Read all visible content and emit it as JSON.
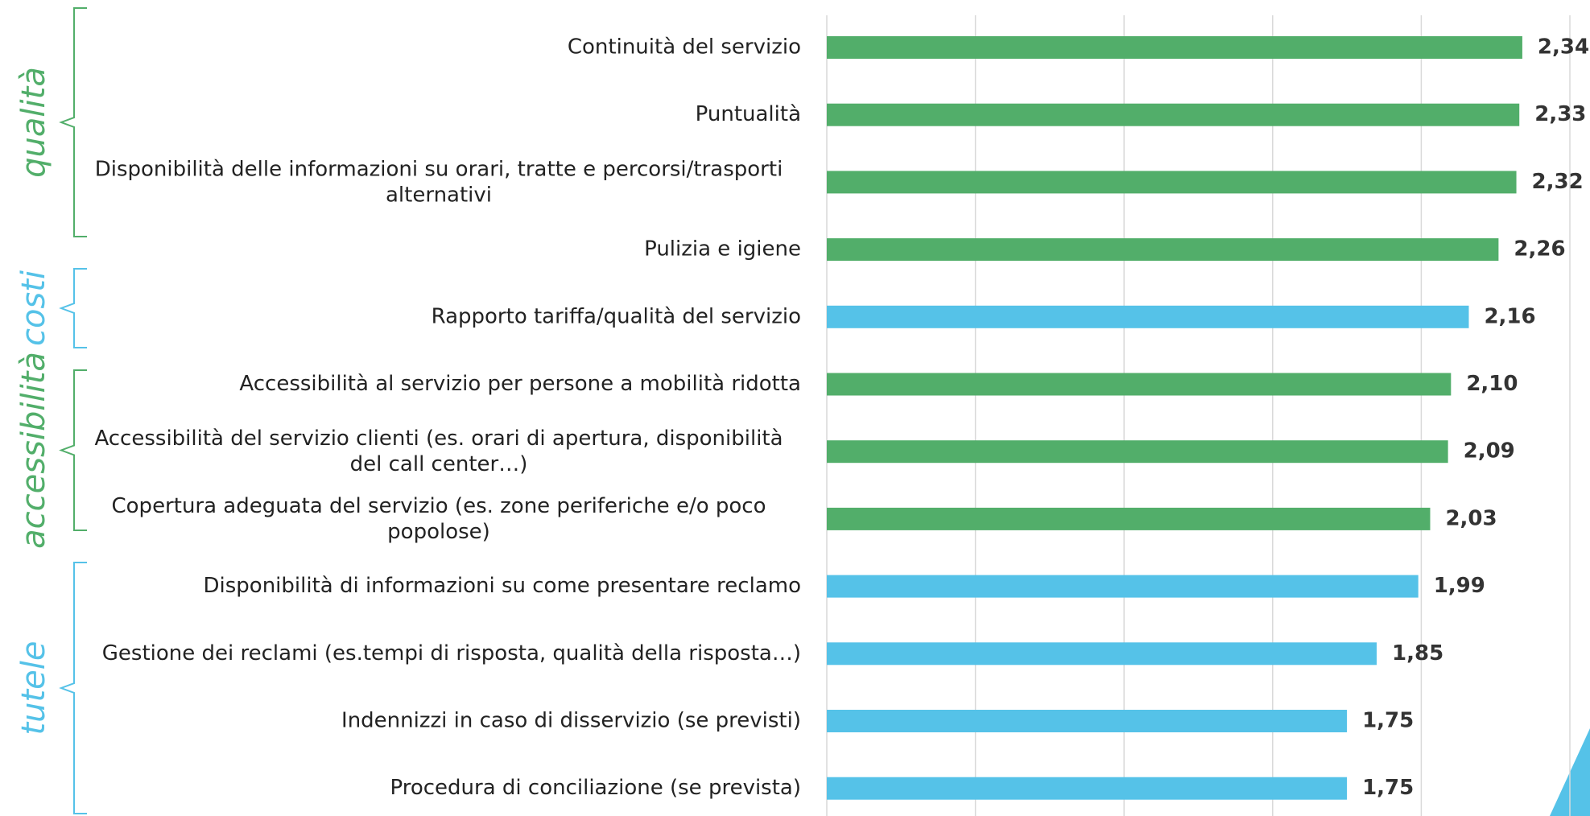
{
  "chart_data": {
    "type": "bar",
    "orientation": "horizontal",
    "categories": [
      "Continuità del servizio",
      "Puntualità",
      "Disponibilità delle informazioni su orari, tratte e percorsi/trasporti alternativi",
      "Pulizia e igiene",
      "Rapporto tariffa/qualità del servizio",
      "Accessibilità al servizio per persone a mobilità ridotta",
      "Accessibilità del servizio clienti (es. orari di apertura, disponibilità del call center…)",
      "Copertura adeguata del servizio (es. zone periferiche e/o poco popolose)",
      "Disponibilità di informazioni su come presentare reclamo",
      "Gestione dei reclami (es.tempi di risposta, qualità della risposta…)",
      "Indennizzi in caso di disservizio (se previsti)",
      "Procedura di conciliazione (se prevista)"
    ],
    "values": [
      2.34,
      2.33,
      2.32,
      2.26,
      2.16,
      2.1,
      2.09,
      2.03,
      1.99,
      1.85,
      1.75,
      1.75
    ],
    "value_labels": [
      "2,34",
      "2,33",
      "2,32",
      "2,26",
      "2,16",
      "2,10",
      "2,09",
      "2,03",
      "1,99",
      "1,85",
      "1,75",
      "1,75"
    ],
    "colors": [
      "#52ae6a",
      "#52ae6a",
      "#52ae6a",
      "#52ae6a",
      "#55c2e8",
      "#52ae6a",
      "#52ae6a",
      "#52ae6a",
      "#55c2e8",
      "#55c2e8",
      "#55c2e8",
      "#55c2e8"
    ],
    "xlim": [
      0,
      2.5
    ],
    "xticks": [
      0,
      0.5,
      1,
      1.5,
      2,
      2.5
    ],
    "grid": true,
    "annotations": [
      {
        "text": "qualità",
        "color": "#52ae6a"
      },
      {
        "text": "costi",
        "color": "#55c2e8"
      },
      {
        "text": "accessibilità",
        "color": "#52ae6a"
      },
      {
        "text": "tutele",
        "color": "#55c2e8"
      }
    ]
  }
}
